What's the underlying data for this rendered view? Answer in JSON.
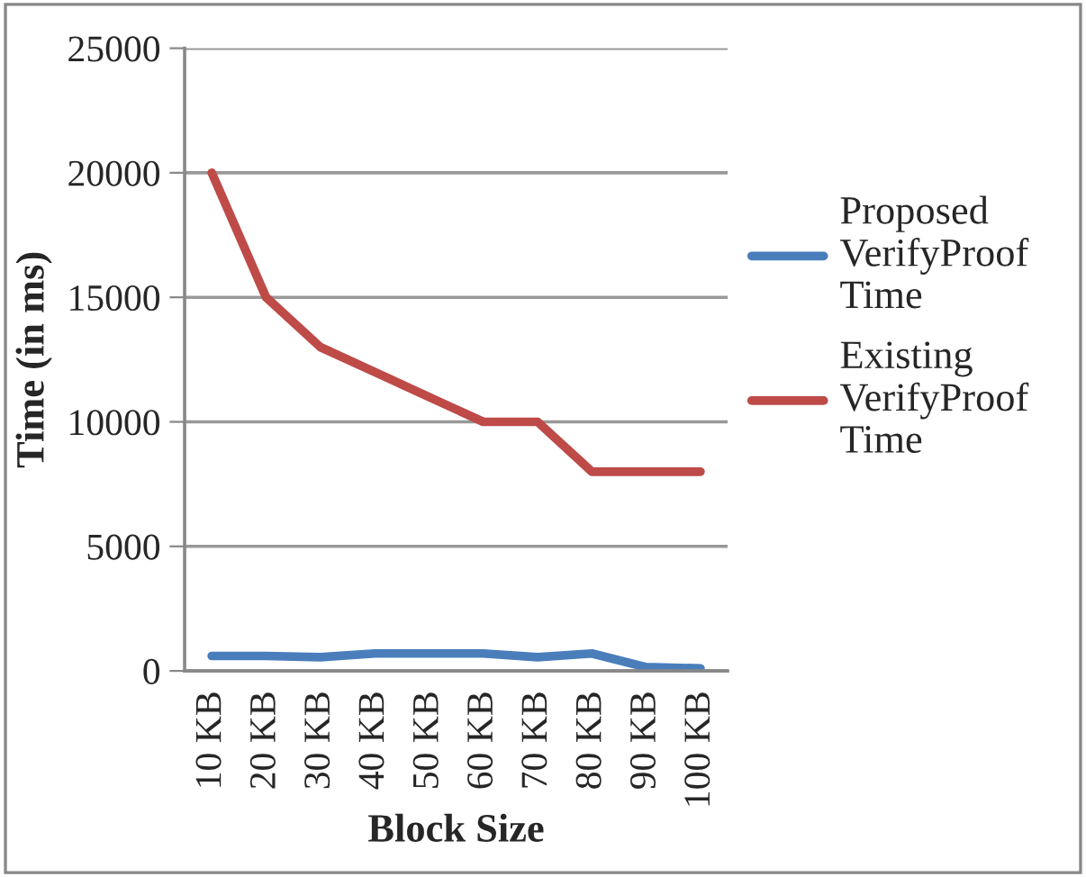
{
  "chart_data": {
    "type": "line",
    "xlabel": "Block Size",
    "ylabel": "Time (in ms)",
    "categories": [
      "10 KB",
      "20 KB",
      "30 KB",
      "40 KB",
      "50 KB",
      "60 KB",
      "70 KB",
      "80 KB",
      "90 KB",
      "100 KB"
    ],
    "series": [
      {
        "name": "Proposed VerifyProof Time",
        "color": "#4a7ebb",
        "values": [
          600,
          600,
          550,
          700,
          700,
          700,
          550,
          700,
          150,
          100
        ]
      },
      {
        "name": "Existing VerifyProof Time",
        "color": "#be4b48",
        "values": [
          20000,
          15000,
          13000,
          12000,
          11000,
          10000,
          10000,
          8000,
          8000,
          8000
        ]
      }
    ],
    "ylim": [
      0,
      25000
    ],
    "yticks": [
      0,
      5000,
      10000,
      15000,
      20000,
      25000
    ],
    "grid": "y",
    "legend": "right",
    "marker": "none",
    "line_style": "solid"
  }
}
